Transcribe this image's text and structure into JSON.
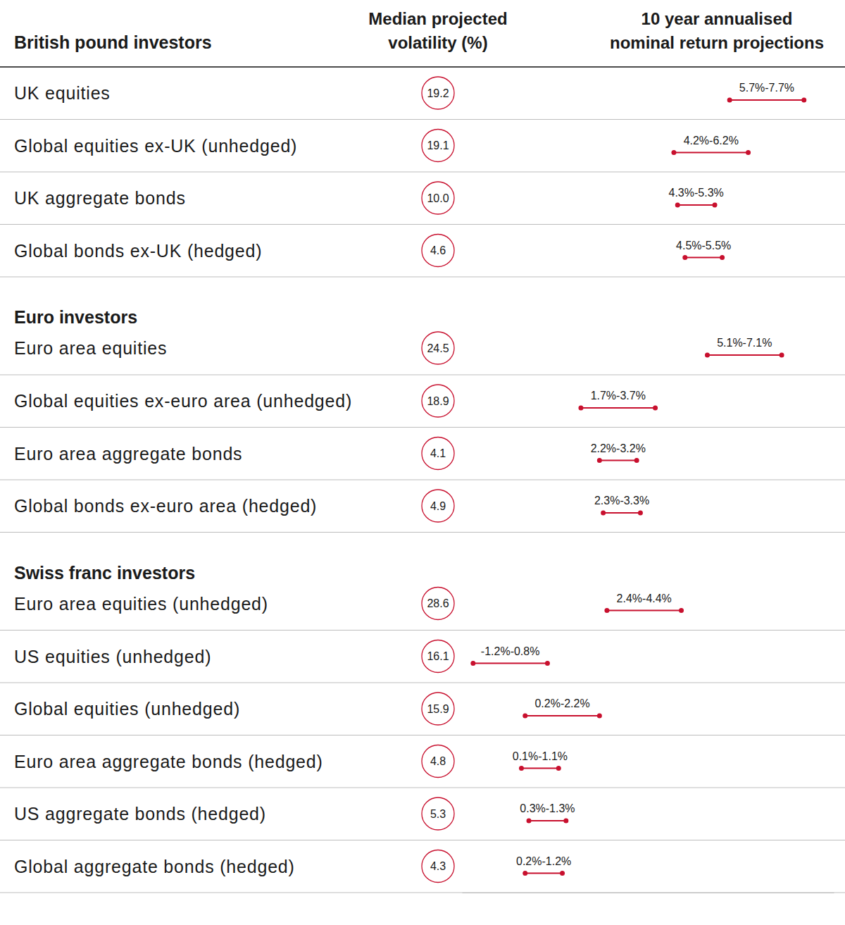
{
  "chart_data": {
    "type": "range",
    "orientation": "horizontal",
    "data_labels": true,
    "tick_labels": false,
    "color": "#c8102e",
    "columns": [
      "Median projected volatility (%)",
      "10 year annualised nominal return projections"
    ],
    "xlim": [
      -1.5,
      8.5
    ],
    "xticks": [],
    "groups": [
      {
        "name": "British pound investors",
        "categories": [
          "UK equities",
          "Global equities ex-UK (unhedged)",
          "UK aggregate bonds",
          "Global bonds ex-UK (hedged)"
        ],
        "volatility": [
          19.2,
          19.1,
          10.0,
          4.6
        ],
        "volatility_labels": [
          "19.2",
          "19.1",
          "10.0",
          "4.6"
        ],
        "low": [
          5.7,
          4.2,
          4.3,
          4.5
        ],
        "high": [
          7.7,
          6.2,
          5.3,
          5.5
        ],
        "value_labels": [
          "5.7%-7.7%",
          "4.2%-6.2%",
          "4.3%-5.3%",
          "4.5%-5.5%"
        ]
      },
      {
        "name": "Euro investors",
        "categories": [
          "Euro area equities",
          "Global equities ex-euro area (unhedged)",
          "Euro area aggregate bonds",
          "Global bonds ex-euro area (hedged)"
        ],
        "volatility": [
          24.5,
          18.9,
          4.1,
          4.9
        ],
        "volatility_labels": [
          "24.5",
          "18.9",
          "4.1",
          "4.9"
        ],
        "low": [
          5.1,
          1.7,
          2.2,
          2.3
        ],
        "high": [
          7.1,
          3.7,
          3.2,
          3.3
        ],
        "value_labels": [
          "5.1%-7.1%",
          "1.7%-3.7%",
          "2.2%-3.2%",
          "2.3%-3.3%"
        ]
      },
      {
        "name": "Swiss franc investors",
        "categories": [
          "Euro area equities (unhedged)",
          "US equities (unhedged)",
          "Global equities (unhedged)",
          "Euro area aggregate bonds (hedged)",
          "US aggregate bonds (hedged)",
          "Global aggregate bonds (hedged)"
        ],
        "volatility": [
          28.6,
          16.1,
          15.9,
          4.8,
          5.3,
          4.3
        ],
        "volatility_labels": [
          "28.6",
          "16.1",
          "15.9",
          "4.8",
          "5.3",
          "4.3"
        ],
        "low": [
          2.4,
          -1.2,
          0.2,
          0.1,
          0.3,
          0.2
        ],
        "high": [
          4.4,
          0.8,
          2.2,
          1.1,
          1.3,
          1.2
        ],
        "value_labels": [
          "2.4%-4.4%",
          "-1.2%-0.8%",
          "0.2%-2.2%",
          "0.1%-1.1%",
          "0.3%-1.3%",
          "0.2%-1.2%"
        ]
      }
    ]
  }
}
